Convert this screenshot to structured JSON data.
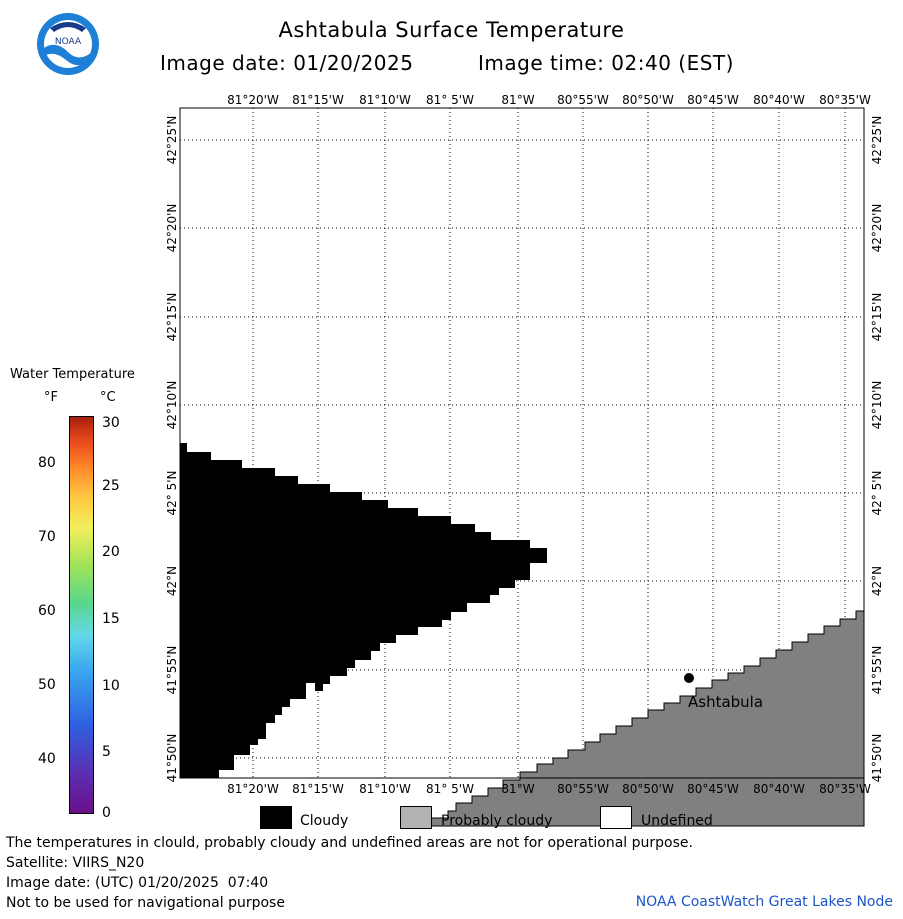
{
  "header": {
    "title": "Ashtabula Surface Temperature",
    "image_date_label": "Image date: 01/20/2025",
    "image_time_label": "Image time: 02:40 (EST)",
    "logo_text": "NOAA"
  },
  "map": {
    "lon_labels": [
      "81°20'W",
      "81°15'W",
      "81°10'W",
      "81° 5'W",
      "81°W",
      "80°55'W",
      "80°50'W",
      "80°45'W",
      "80°40'W",
      "80°35'W"
    ],
    "lat_labels": [
      "42°25'N",
      "42°20'N",
      "42°15'N",
      "42°10'N",
      "42° 5'N",
      "42°N",
      "41°55'N",
      "41°50'N"
    ],
    "city_label": "Ashtabula",
    "colors": {
      "cloudy": "#000000",
      "land": "#808080",
      "background": "#ffffff"
    }
  },
  "legend": {
    "title": "Water Temperature",
    "unit_f": "°F",
    "unit_c": "°C",
    "ticks_f": [
      "80",
      "70",
      "60",
      "50",
      "40"
    ],
    "ticks_c": [
      "30",
      "25",
      "20",
      "15",
      "10",
      "5",
      "0"
    ],
    "cloudy": "Cloudy",
    "probably_cloudy": "Probably cloudy",
    "undefined": "Undefined"
  },
  "footer": {
    "disclaimer": "The temperatures in clould, probably cloudy and undefined areas are not for operational purpose.",
    "satellite": "Satellite: VIIRS_N20",
    "utc_date": "Image date: (UTC) 01/20/2025  07:40",
    "navigation": "Not to be used for navigational purpose",
    "credit": "NOAA CoastWatch Great Lakes Node"
  }
}
